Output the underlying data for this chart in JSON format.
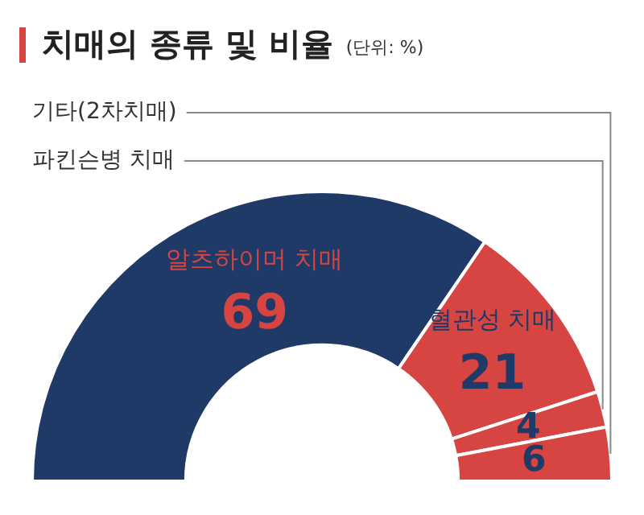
{
  "chart_data": {
    "type": "donut",
    "title": "치매의 종류 및 비율",
    "subtitle": "(단위: %)",
    "categories": [
      "알츠하이머 치매",
      "혈관성 치매",
      "파킨슨병 치매",
      "기타(2차치매)"
    ],
    "values": [
      69,
      21,
      4,
      6
    ],
    "colors": [
      "#1f3a66",
      "#d64541",
      "#d64541",
      "#d64541"
    ],
    "data_labels": true,
    "legend": false
  }
}
